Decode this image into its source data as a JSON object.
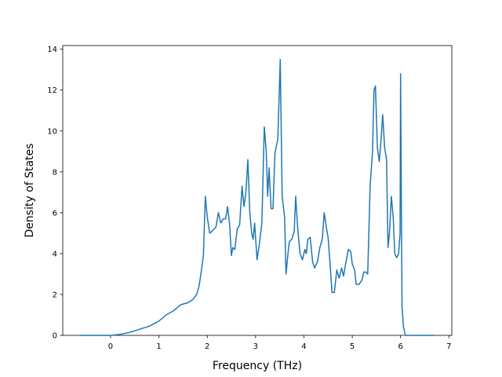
{
  "chart_data": {
    "type": "line",
    "x_label": "Frequency (THz)",
    "y_label": "Density of States",
    "x": [
      -0.63,
      0,
      0.2,
      0.4,
      0.6,
      0.8,
      1.0,
      1.1,
      1.15,
      1.3,
      1.45,
      1.6,
      1.7,
      1.78,
      1.83,
      1.88,
      1.92,
      1.96,
      2.0,
      2.05,
      2.1,
      2.18,
      2.23,
      2.28,
      2.33,
      2.38,
      2.42,
      2.46,
      2.5,
      2.53,
      2.57,
      2.62,
      2.67,
      2.72,
      2.76,
      2.8,
      2.84,
      2.88,
      2.92,
      2.95,
      2.98,
      3.03,
      3.08,
      3.13,
      3.18,
      3.22,
      3.25,
      3.28,
      3.32,
      3.36,
      3.4,
      3.46,
      3.51,
      3.55,
      3.6,
      3.63,
      3.67,
      3.7,
      3.75,
      3.8,
      3.83,
      3.87,
      3.92,
      3.97,
      4.02,
      4.05,
      4.08,
      4.13,
      4.18,
      4.22,
      4.28,
      4.33,
      4.38,
      4.42,
      4.47,
      4.5,
      4.55,
      4.58,
      4.63,
      4.68,
      4.73,
      4.78,
      4.82,
      4.87,
      4.92,
      4.97,
      5.0,
      5.05,
      5.08,
      5.14,
      5.2,
      5.24,
      5.28,
      5.32,
      5.37,
      5.42,
      5.45,
      5.48,
      5.52,
      5.56,
      5.6,
      5.63,
      5.67,
      5.71,
      5.74,
      5.77,
      5.81,
      5.85,
      5.88,
      5.92,
      5.96,
      5.99,
      6.0,
      6.03,
      6.06,
      6.1,
      6.7
    ],
    "series": [
      {
        "color": "#1f77b4",
        "values": [
          0,
          0,
          0.05,
          0.15,
          0.3,
          0.45,
          0.7,
          0.9,
          1.0,
          1.2,
          1.5,
          1.6,
          1.75,
          2.0,
          2.4,
          3.2,
          3.9,
          6.8,
          5.8,
          5.0,
          5.1,
          5.3,
          6.0,
          5.5,
          5.7,
          5.7,
          6.3,
          5.5,
          3.9,
          4.3,
          4.2,
          5.2,
          5.4,
          7.3,
          6.3,
          7.0,
          8.6,
          6.0,
          5.0,
          4.7,
          5.5,
          3.7,
          4.5,
          5.5,
          10.2,
          9.0,
          6.8,
          8.2,
          6.2,
          6.2,
          8.9,
          9.6,
          13.5,
          6.8,
          5.8,
          3.0,
          4.0,
          4.6,
          4.7,
          5.1,
          6.8,
          5.3,
          4.0,
          3.7,
          4.2,
          4.0,
          4.7,
          4.8,
          3.6,
          3.3,
          3.6,
          4.3,
          4.7,
          6.0,
          5.2,
          4.8,
          3.2,
          2.1,
          2.1,
          3.2,
          2.8,
          3.3,
          2.9,
          3.6,
          4.2,
          4.1,
          3.5,
          3.2,
          2.5,
          2.5,
          2.7,
          3.1,
          3.1,
          3.0,
          7.3,
          9.0,
          12.0,
          12.2,
          9.2,
          8.5,
          9.7,
          10.8,
          9.2,
          8.6,
          4.3,
          5.0,
          6.8,
          5.7,
          4.0,
          3.8,
          4.0,
          5.0,
          12.8,
          1.4,
          0.4,
          0,
          0
        ]
      }
    ],
    "xlim": [
      -0.99,
      7.06
    ],
    "ylim": [
      0,
      14.18
    ],
    "xticks": [
      0,
      1,
      2,
      3,
      4,
      5,
      6,
      7
    ],
    "yticks": [
      0,
      2,
      4,
      6,
      8,
      10,
      12,
      14
    ]
  }
}
